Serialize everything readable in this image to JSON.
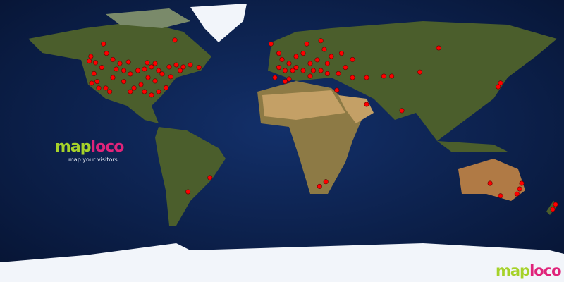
{
  "logo": {
    "part1": "map",
    "part2": "loco",
    "tagline": "map your visitors"
  },
  "corner_logo": {
    "part1": "map",
    "part2": "loco"
  },
  "colors": {
    "ocean": "#0a1c44",
    "land": "#4b5e2c",
    "desert": "#b9955e",
    "ice": "#f2f5fa",
    "marker": "#ff0000",
    "logo_green": "#a6d22a",
    "logo_pink": "#e0247a"
  },
  "projection": "equirectangular",
  "visitor_locations": [
    [
      -114,
      62
    ],
    [
      -122,
      54
    ],
    [
      -112,
      56
    ],
    [
      -119,
      50
    ],
    [
      -115,
      47
    ],
    [
      -108,
      52
    ],
    [
      -103.5,
      49.5
    ],
    [
      -98,
      50.4
    ],
    [
      -92,
      45
    ],
    [
      -87.8,
      45.9
    ],
    [
      -83.3,
      47.3
    ],
    [
      -78.8,
      45
    ],
    [
      -72,
      47.3
    ],
    [
      -67.5,
      48.6
    ],
    [
      -63,
      47.3
    ],
    [
      -58.5,
      48.6
    ],
    [
      -53,
      47
    ],
    [
      -121.5,
      36.9
    ],
    [
      -117,
      33.8
    ],
    [
      -112.5,
      33.8
    ],
    [
      -108,
      40.5
    ],
    [
      -101,
      38
    ],
    [
      -96.8,
      42.8
    ],
    [
      -94.5,
      33.8
    ],
    [
      -90,
      36
    ],
    [
      -85.5,
      40.5
    ],
    [
      -81,
      38.3
    ],
    [
      -76.5,
      42.8
    ],
    [
      -71,
      41
    ],
    [
      -65,
      45
    ],
    [
      -87.8,
      31.5
    ],
    [
      -83.3,
      29.3
    ],
    [
      -78.8,
      31.5
    ],
    [
      -74,
      34
    ],
    [
      -101,
      45
    ],
    [
      -105.8,
      45.9
    ],
    [
      -96.8,
      31.5
    ],
    [
      -110,
      31.5
    ],
    [
      -68.4,
      64.4
    ],
    [
      -86,
      50
    ],
    [
      -81,
      49.5
    ],
    [
      -123,
      51
    ],
    [
      -120,
      43
    ],
    [
      -118,
      38
    ],
    [
      -46,
      -23.4
    ],
    [
      -60,
      -32.4
    ],
    [
      -7,
      62
    ],
    [
      -2,
      56
    ],
    [
      0,
      52
    ],
    [
      4.5,
      49.5
    ],
    [
      9,
      54
    ],
    [
      13.5,
      56
    ],
    [
      18,
      49.5
    ],
    [
      22.5,
      51.8
    ],
    [
      27,
      58.5
    ],
    [
      29,
      49.5
    ],
    [
      24.8,
      64
    ],
    [
      15.8,
      62
    ],
    [
      9,
      47
    ],
    [
      2,
      45
    ],
    [
      6.8,
      45
    ],
    [
      13.5,
      45
    ],
    [
      20,
      45
    ],
    [
      31.5,
      54
    ],
    [
      38,
      56
    ],
    [
      45,
      52
    ],
    [
      40.5,
      47
    ],
    [
      36,
      43
    ],
    [
      29,
      43
    ],
    [
      24.8,
      45
    ],
    [
      4.5,
      39.6
    ],
    [
      18,
      41.4
    ],
    [
      35,
      32.4
    ],
    [
      45,
      40.5
    ],
    [
      54,
      40.5
    ],
    [
      65,
      41.4
    ],
    [
      70,
      41.4
    ],
    [
      88,
      44
    ],
    [
      100,
      59.4
    ],
    [
      54,
      23.4
    ],
    [
      76.5,
      19.4
    ],
    [
      -2,
      47
    ],
    [
      -4.5,
      40.5
    ],
    [
      2,
      38
    ],
    [
      28,
      -26
    ],
    [
      24,
      -29
    ],
    [
      139.5,
      37
    ],
    [
      138,
      34.6
    ],
    [
      132.8,
      -27
    ],
    [
      153,
      -27
    ],
    [
      151.7,
      -30.6
    ],
    [
      150,
      -33.8
    ],
    [
      139.5,
      -35
    ],
    [
      174.6,
      -40.5
    ],
    [
      172.8,
      -43.6
    ]
  ]
}
